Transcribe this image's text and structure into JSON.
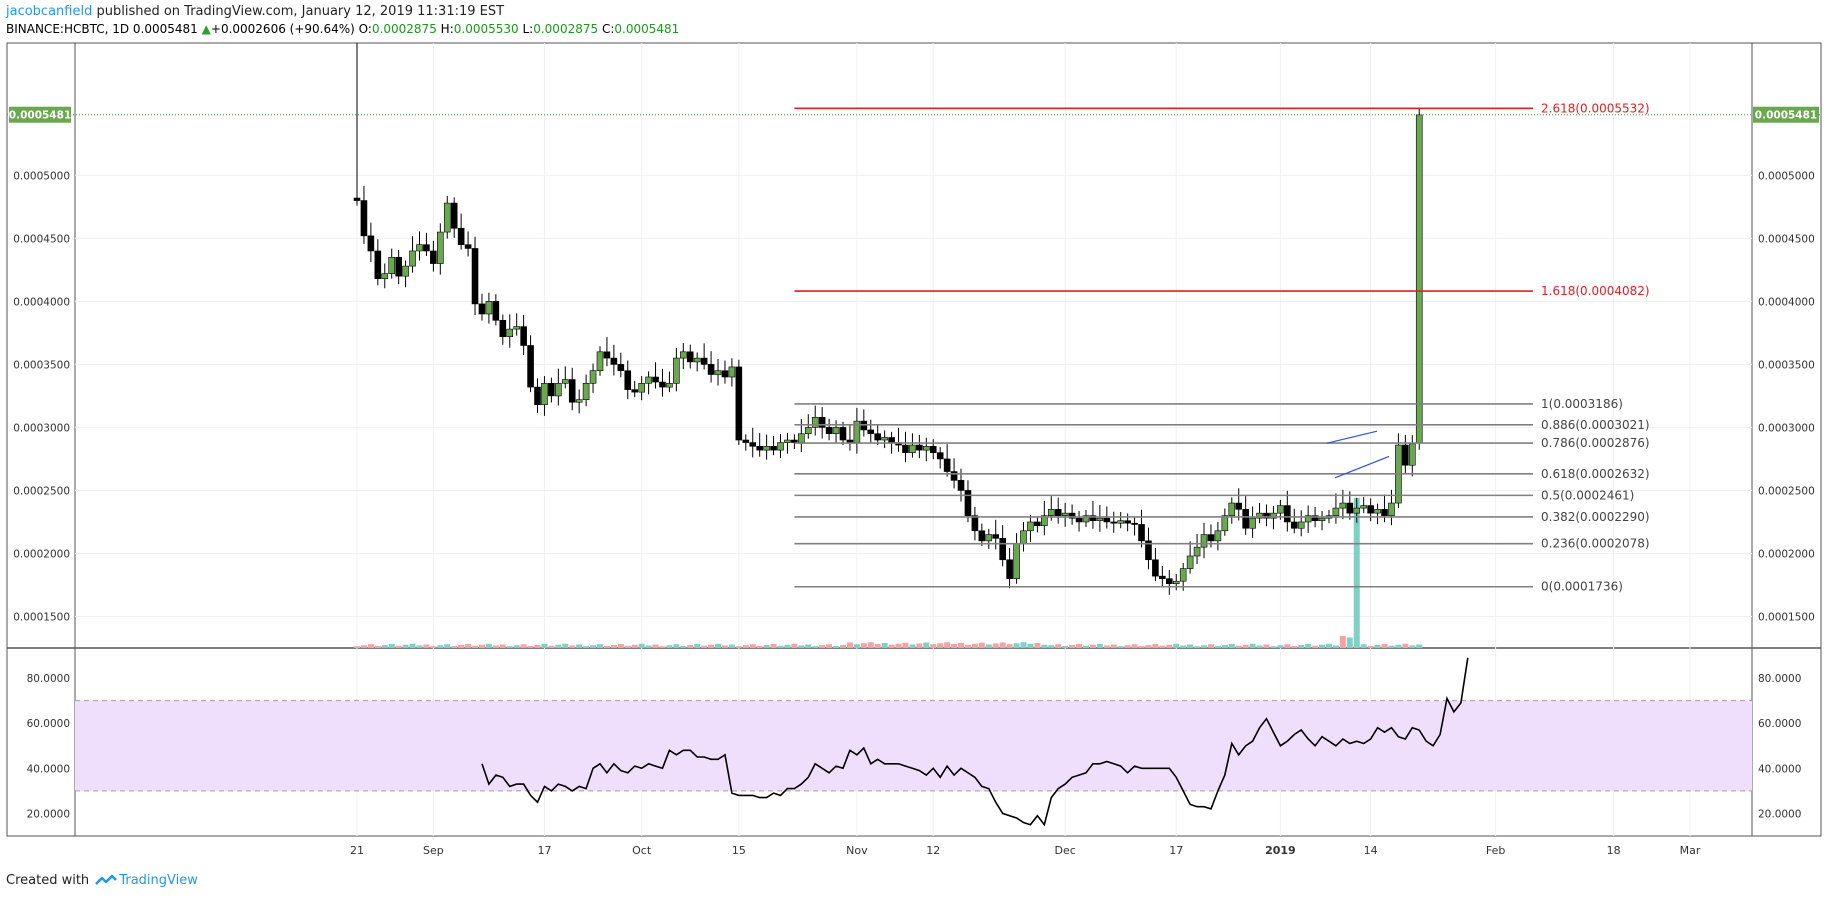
{
  "header": {
    "author": "jacobcanfield",
    "published_text": "published on TradingView.com, January 12, 2019 11:31:19 EST",
    "symbol": "BINANCE:HCBTC, 1D",
    "last": "0.0005481",
    "change": "+0.0002606 (+90.64%)",
    "o_label": "O:",
    "o_value": "0.0002875",
    "h_label": "H:",
    "h_value": "0.0005530",
    "l_label": "L:",
    "l_value": "0.0002875",
    "c_label": "C:",
    "c_value": "0.0005481"
  },
  "footer": {
    "created_with": "Created with",
    "brand": "TradingView"
  },
  "colors": {
    "up_candle": "#6aa84f",
    "down_candle": "#000000",
    "vol_up": "#7fd1c6",
    "vol_down": "#f4a3a3",
    "fib_line": "#808080",
    "fib_ext": "#e02020",
    "rsi_band": "#efdffc",
    "price_badge": "#6aa84f",
    "channel": "#3050e0"
  },
  "chart_data": {
    "type": "candlestick",
    "price_axis": {
      "range": [
        0.000125,
        0.000605
      ],
      "ticks": [
        "0.0001500",
        "0.0002000",
        "0.0002500",
        "0.0003000",
        "0.0003500",
        "0.0004000",
        "0.0004500",
        "0.0005000"
      ],
      "last_price_badge": "0.0005481"
    },
    "x_axis": {
      "ticks": [
        {
          "label": "21",
          "date": "2018-08-21"
        },
        {
          "label": "Sep",
          "date": "2018-09-01"
        },
        {
          "label": "17",
          "date": "2018-09-17"
        },
        {
          "label": "Oct",
          "date": "2018-10-01"
        },
        {
          "label": "15",
          "date": "2018-10-15"
        },
        {
          "label": "Nov",
          "date": "2018-11-01"
        },
        {
          "label": "12",
          "date": "2018-11-12"
        },
        {
          "label": "Dec",
          "date": "2018-12-01"
        },
        {
          "label": "17",
          "date": "2018-12-17"
        },
        {
          "label": "2019",
          "date": "2019-01-01"
        },
        {
          "label": "14",
          "date": "2019-01-14"
        },
        {
          "label": "Feb",
          "date": "2019-02-01"
        },
        {
          "label": "18",
          "date": "2019-02-18"
        },
        {
          "label": "Mar",
          "date": "2019-03-01"
        }
      ]
    },
    "first_date": "2018-08-21",
    "closes": [
      0.00048,
      0.000452,
      0.00044,
      0.000418,
      0.000422,
      0.000435,
      0.00042,
      0.000428,
      0.00044,
      0.000445,
      0.00044,
      0.00043,
      0.000455,
      0.000478,
      0.000458,
      0.000445,
      0.000442,
      0.000398,
      0.00039,
      0.0004,
      0.000385,
      0.000372,
      0.000378,
      0.00038,
      0.000365,
      0.000332,
      0.000318,
      0.000335,
      0.000325,
      0.000335,
      0.000338,
      0.00032,
      0.000322,
      0.000335,
      0.000345,
      0.00036,
      0.000355,
      0.00035,
      0.000345,
      0.00033,
      0.000328,
      0.000335,
      0.00034,
      0.000336,
      0.000332,
      0.000335,
      0.000355,
      0.00036,
      0.000352,
      0.000355,
      0.00035,
      0.000342,
      0.000345,
      0.00034,
      0.000348,
      0.00029,
      0.000288,
      0.000285,
      0.000282,
      0.000285,
      0.000282,
      0.000288,
      0.00029,
      0.000288,
      0.000295,
      0.0003,
      0.000308,
      0.0003,
      0.000295,
      0.0003,
      0.00029,
      0.000288,
      0.000305,
      0.000298,
      0.000295,
      0.00029,
      0.000292,
      0.000288,
      0.000286,
      0.00028,
      0.000286,
      0.000282,
      0.000285,
      0.00028,
      0.000275,
      0.000265,
      0.000258,
      0.00025,
      0.00023,
      0.000218,
      0.00021,
      0.000215,
      0.000212,
      0.000195,
      0.00018,
      0.000208,
      0.000218,
      0.000225,
      0.000222,
      0.00023,
      0.000235,
      0.00023,
      0.000232,
      0.000228,
      0.000225,
      0.00023,
      0.000226,
      0.000228,
      0.000225,
      0.000224,
      0.000226,
      0.000224,
      0.000223,
      0.00021,
      0.000195,
      0.000182,
      0.00018,
      0.000176,
      0.000178,
      0.000188,
      0.000198,
      0.000205,
      0.000215,
      0.00021,
      0.000218,
      0.00023,
      0.00024,
      0.000235,
      0.00022,
      0.000228,
      0.000232,
      0.000228,
      0.000232,
      0.000238,
      0.000225,
      0.00022,
      0.000225,
      0.00023,
      0.000226,
      0.000228,
      0.00023,
      0.000236,
      0.00024,
      0.000232,
      0.000236,
      0.000238,
      0.000232,
      0.000235,
      0.00023,
      0.00024,
      0.000286,
      0.00027,
      0.000287,
      0.000548
    ],
    "volume_spikes": [
      {
        "date": "2019-01-10",
        "up": false,
        "rel": 0.08
      },
      {
        "date": "2019-01-11",
        "up": true,
        "rel": 0.07
      },
      {
        "date": "2019-01-12",
        "up": true,
        "rel": 1.0
      }
    ],
    "fib_retracement": [
      {
        "label": "1(0.0003186)",
        "value": 0.0003186
      },
      {
        "label": "0.886(0.0003021)",
        "value": 0.0003021
      },
      {
        "label": "0.786(0.0002876)",
        "value": 0.0002876
      },
      {
        "label": "0.618(0.0002632)",
        "value": 0.0002632
      },
      {
        "label": "0.5(0.0002461)",
        "value": 0.0002461
      },
      {
        "label": "0.382(0.0002290)",
        "value": 0.000229
      },
      {
        "label": "0.236(0.0002078)",
        "value": 0.0002078
      },
      {
        "label": "0(0.0001736)",
        "value": 0.0001736
      }
    ],
    "fib_extension": [
      {
        "label": "2.618(0.0005532)",
        "value": 0.0005532
      },
      {
        "label": "1.618(0.0004082)",
        "value": 0.0004082
      }
    ],
    "fib_start_date": "2018-10-23",
    "rsi": {
      "range": [
        10,
        92
      ],
      "ticks": [
        "20.0000",
        "40.0000",
        "60.0000",
        "80.0000"
      ],
      "band": [
        30,
        70
      ],
      "first_date": "2018-09-08",
      "values": [
        42,
        33,
        37,
        36,
        32,
        33,
        33,
        28,
        25,
        32,
        30,
        33,
        32,
        30,
        32,
        31,
        40,
        42,
        38,
        42,
        39,
        38,
        41,
        40,
        42,
        41,
        40,
        48,
        46,
        48,
        48,
        45,
        45,
        44,
        44,
        46,
        29,
        28,
        28,
        28,
        27,
        27,
        29,
        28,
        31,
        31,
        33,
        36,
        42,
        40,
        38,
        41,
        40,
        48,
        46,
        49,
        42,
        44,
        42,
        42,
        42,
        41,
        40,
        39,
        37,
        40,
        36,
        41,
        37,
        40,
        38,
        36,
        32,
        31,
        25,
        20,
        19,
        18,
        16,
        15,
        19,
        15,
        27,
        31,
        33,
        36,
        37,
        38,
        42,
        42,
        43,
        42,
        41,
        38,
        41,
        40,
        40,
        40,
        40,
        40,
        36,
        30,
        24,
        23,
        23,
        22,
        30,
        37,
        51,
        46,
        50,
        52,
        58,
        62,
        56,
        50,
        52,
        55,
        57,
        53,
        50,
        54,
        52,
        50,
        53,
        51,
        52,
        51,
        53,
        58,
        56,
        58,
        54,
        53,
        58,
        57,
        52,
        50,
        55,
        71,
        65,
        69,
        89
      ]
    }
  }
}
